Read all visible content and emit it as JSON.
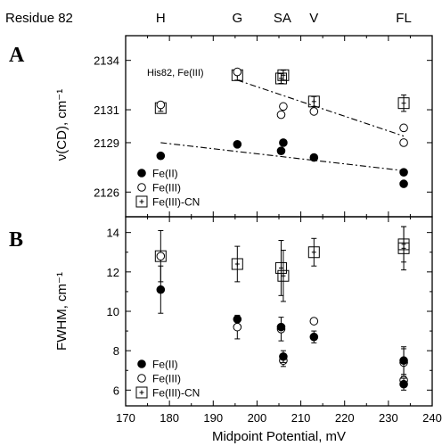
{
  "chart_data": [
    {
      "panel": "A",
      "type": "scatter",
      "ylabel": "ν(CD), cm⁻¹",
      "xlim": [
        170,
        240
      ],
      "ylim": [
        2124.5,
        2135.5
      ],
      "yticks": [
        2126,
        2129,
        2131,
        2134
      ],
      "annotation": "His82, Fe(III)",
      "series": [
        {
          "name": "Fe(II)",
          "marker": "filled-circle",
          "x": [
            178,
            195.5,
            205.5,
            206,
            213,
            233.5,
            233.5
          ],
          "y": [
            2128.2,
            2128.9,
            2128.5,
            2129.0,
            2128.1,
            2127.2,
            2126.5
          ]
        },
        {
          "name": "Fe(III)",
          "marker": "open-circle",
          "x": [
            178,
            195.5,
            205.5,
            206,
            213,
            233.5,
            233.5
          ],
          "y": [
            2131.3,
            2133.3,
            2130.7,
            2131.2,
            2130.9,
            2129.9,
            2129.0
          ]
        },
        {
          "name": "Fe(III)-CN",
          "marker": "open-square",
          "x": [
            178,
            195.5,
            205.5,
            206,
            213,
            233.5
          ],
          "y": [
            2131.1,
            2133.1,
            2132.9,
            2133.1,
            2131.5,
            2131.4
          ],
          "err": [
            0.2,
            0.3,
            0.3,
            0.3,
            0.3,
            0.5
          ]
        }
      ],
      "fits": [
        {
          "x": [
            195.5,
            233.5
          ],
          "y": [
            2132.8,
            2129.4
          ],
          "style": "dash-dot"
        },
        {
          "x": [
            178,
            233.5
          ],
          "y": [
            2129.0,
            2127.3
          ],
          "style": "dash-dot"
        }
      ]
    },
    {
      "panel": "B",
      "type": "scatter",
      "xlabel": "Midpoint Potential, mV",
      "ylabel": "FWHM, cm⁻¹",
      "xlim": [
        170,
        240
      ],
      "xticks": [
        170,
        180,
        190,
        200,
        210,
        220,
        230,
        240
      ],
      "ylim": [
        5.2,
        14.8
      ],
      "yticks": [
        6,
        8,
        10,
        12,
        14
      ],
      "series": [
        {
          "name": "Fe(II)",
          "marker": "filled-circle",
          "x": [
            178,
            195.5,
            205.5,
            206,
            213,
            233.5,
            233.5
          ],
          "y": [
            11.1,
            9.6,
            9.2,
            7.7,
            8.7,
            7.5,
            6.3
          ],
          "err": [
            1.2,
            0,
            0,
            0.3,
            0.3,
            0.7,
            0.3
          ]
        },
        {
          "name": "Fe(III)",
          "marker": "open-circle",
          "x": [
            178,
            195.5,
            205.5,
            206,
            213,
            233.5,
            233.5
          ],
          "y": [
            12.8,
            9.2,
            9.1,
            7.5,
            9.5,
            7.4,
            6.5
          ],
          "err": [
            0,
            0.6,
            0.6,
            0.3,
            0,
            0.7,
            0
          ]
        },
        {
          "name": "Fe(III)-CN",
          "marker": "open-square",
          "x": [
            178,
            195.5,
            205.5,
            206,
            213,
            233.5,
            233.5
          ],
          "y": [
            12.8,
            12.4,
            12.2,
            11.8,
            13.0,
            13.4,
            13.2
          ],
          "err": [
            1.3,
            0.9,
            1.4,
            1.3,
            0.7,
            0.9,
            1.1
          ]
        }
      ]
    }
  ],
  "top_axis": {
    "title": "Residue 82",
    "labels": [
      {
        "text": "H",
        "x": 178
      },
      {
        "text": "G",
        "x": 195.5
      },
      {
        "text": "SA",
        "x": 205.8
      },
      {
        "text": "V",
        "x": 213
      },
      {
        "text": "FL",
        "x": 233.5
      }
    ]
  }
}
